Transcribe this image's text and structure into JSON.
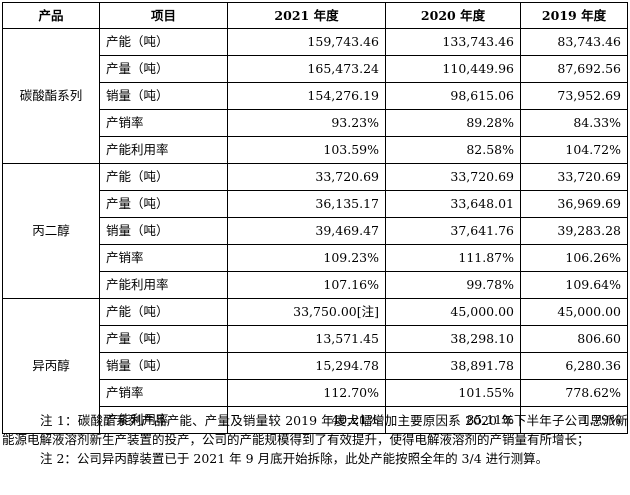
{
  "header": {
    "product": "产品",
    "item": "项目",
    "y2021": "2021 年度",
    "y2020": "2020 年度",
    "y2019": "2019 年度"
  },
  "groups": [
    {
      "name": "碳酸酯系列",
      "rows": [
        {
          "item": "产能（吨）",
          "v2021": "159,743.46",
          "v2020": "133,743.46",
          "v2019": "83,743.46"
        },
        {
          "item": "产量（吨）",
          "v2021": "165,473.24",
          "v2020": "110,449.96",
          "v2019": "87,692.56"
        },
        {
          "item": "销量（吨）",
          "v2021": "154,276.19",
          "v2020": "98,615.06",
          "v2019": "73,952.69"
        },
        {
          "item": "产销率",
          "v2021": "93.23%",
          "v2020": "89.28%",
          "v2019": "84.33%"
        },
        {
          "item": "产能利用率",
          "v2021": "103.59%",
          "v2020": "82.58%",
          "v2019": "104.72%"
        }
      ]
    },
    {
      "name": "丙二醇",
      "rows": [
        {
          "item": "产能（吨）",
          "v2021": "33,720.69",
          "v2020": "33,720.69",
          "v2019": "33,720.69"
        },
        {
          "item": "产量（吨）",
          "v2021": "36,135.17",
          "v2020": "33,648.01",
          "v2019": "36,969.69"
        },
        {
          "item": "销量（吨）",
          "v2021": "39,469.47",
          "v2020": "37,641.76",
          "v2019": "39,283.28"
        },
        {
          "item": "产销率",
          "v2021": "109.23%",
          "v2020": "111.87%",
          "v2019": "106.26%"
        },
        {
          "item": "产能利用率",
          "v2021": "107.16%",
          "v2020": "99.78%",
          "v2019": "109.64%"
        }
      ]
    },
    {
      "name": "异丙醇",
      "rows": [
        {
          "item": "产能（吨）",
          "v2021": "33,750.00[注]",
          "v2020": "45,000.00",
          "v2019": "45,000.00"
        },
        {
          "item": "产量（吨）",
          "v2021": "13,571.45",
          "v2020": "38,298.10",
          "v2019": "806.60"
        },
        {
          "item": "销量（吨）",
          "v2021": "15,294.78",
          "v2020": "38,891.78",
          "v2019": "6,280.36"
        },
        {
          "item": "产销率",
          "v2021": "112.70%",
          "v2020": "101.55%",
          "v2019": "778.62%"
        },
        {
          "item": "产能利用率",
          "v2021": "40.21%",
          "v2020": "85.11%",
          "v2019": "1.79%"
        }
      ]
    }
  ],
  "notes": {
    "note1": "注 1：碳酸酯系列产品产能、产量及销量较 2019 年度大幅增加主要原因系 2020 年下半年子公司思派新能源电解液溶剂新生产装置的投产，公司的产能规模得到了有效提升，使得电解液溶剂的产销量有所增长；",
    "note2": "注 2：公司异丙醇装置已于 2021 年 9 月底开始拆除，此处产能按照全年的 3/4 进行测算。"
  }
}
